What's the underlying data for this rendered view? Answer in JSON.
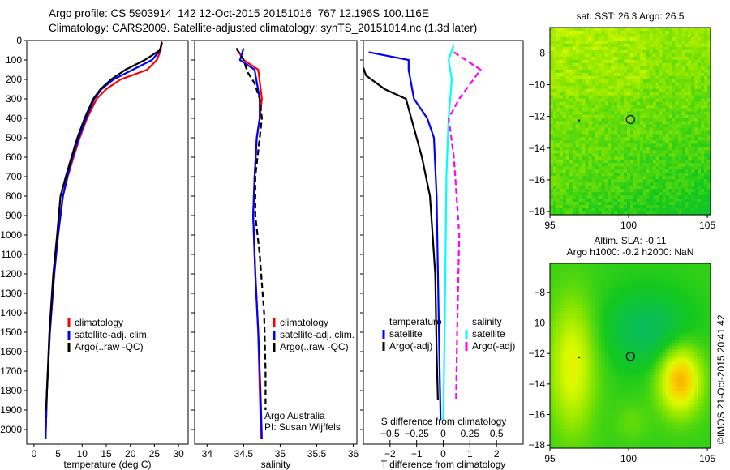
{
  "title_line1": "Argo profile: CS 5903914_142 12-Oct-2015 20151016_767 12.196S 100.116E",
  "title_line2": "Climatology: CARS2009. Satellite-adjusted climatology: synTS_20151014.nc (1.3d later)",
  "credit": "©IMOS 21-Oct-2015 20:41:42",
  "colors": {
    "climatology": "#ff0000",
    "satellite": "#0000ff",
    "argo": "#000000",
    "sal_satellite": "#00ffff",
    "sal_argo": "#ff00ff"
  },
  "chart_data": [
    {
      "type": "line",
      "id": "temp",
      "xlabel": "temperature (deg C)",
      "ylabel": "",
      "xlim": [
        -1.5,
        32
      ],
      "ylim": [
        0,
        2075
      ],
      "y_reversed": true,
      "xticks": [
        0,
        5,
        10,
        15,
        20,
        25,
        30
      ],
      "yticks": [
        0,
        100,
        200,
        300,
        400,
        500,
        600,
        700,
        800,
        900,
        1000,
        1100,
        1200,
        1300,
        1400,
        1500,
        1600,
        1700,
        1800,
        1900,
        2000
      ],
      "legend": [
        "climatology",
        "satellite-adj. clim.",
        "Argo(..raw -QC)"
      ],
      "series": [
        {
          "name": "climatology",
          "color": "#ff0000",
          "dash": false,
          "x": [
            26.5,
            26.3,
            25.5,
            23.5,
            18,
            15,
            13,
            11,
            9.5,
            8.2,
            7,
            6,
            5,
            4.2,
            3.3,
            2.7,
            2.4
          ],
          "y": [
            0,
            50,
            100,
            150,
            200,
            250,
            300,
            400,
            500,
            600,
            700,
            800,
            1000,
            1200,
            1500,
            1800,
            2050
          ]
        },
        {
          "name": "satellite-adj. clim.",
          "color": "#0000ff",
          "dash": false,
          "x": [
            26.5,
            26.2,
            24.5,
            20.5,
            16.5,
            14,
            12.5,
            10.8,
            9.3,
            8,
            6.9,
            6,
            5,
            4.2,
            3.3,
            2.7,
            2.4
          ],
          "y": [
            10,
            50,
            100,
            150,
            200,
            250,
            300,
            400,
            500,
            600,
            700,
            800,
            1000,
            1200,
            1500,
            1800,
            2050
          ]
        },
        {
          "name": "Argo(..raw -QC)",
          "color": "#000000",
          "dash": false,
          "x": [
            26.6,
            26.1,
            23,
            19,
            16,
            13.8,
            12.3,
            10.5,
            9,
            7.8,
            6.6,
            5.5,
            4.8,
            4,
            3.2,
            2.7,
            2.5
          ],
          "y": [
            10,
            50,
            100,
            150,
            200,
            250,
            300,
            400,
            500,
            600,
            700,
            800,
            1000,
            1200,
            1500,
            1800,
            1900
          ]
        }
      ]
    },
    {
      "type": "line",
      "id": "sal",
      "xlabel": "salinity",
      "xlim": [
        33.83,
        36.05
      ],
      "ylim": [
        0,
        2075
      ],
      "y_reversed": true,
      "xticks": [
        34,
        34.5,
        35,
        35.5,
        36
      ],
      "xticklabels": [
        "34",
        "34.5",
        "35",
        "35.5",
        "36"
      ],
      "legend": [
        "climatology",
        "satellite-adj. clim.",
        "Argo(..raw -QC)"
      ],
      "annotation": [
        "Argo Australia",
        "PI: Susan Wijffels"
      ],
      "series": [
        {
          "name": "climatology",
          "color": "#ff0000",
          "dash": false,
          "x": [
            34.4,
            34.5,
            34.7,
            34.75,
            34.72,
            34.68,
            34.65,
            34.63,
            34.66,
            34.7,
            34.72,
            34.74
          ],
          "y": [
            40,
            100,
            150,
            300,
            400,
            500,
            700,
            900,
            1200,
            1500,
            1800,
            2050
          ]
        },
        {
          "name": "satellite-adj. clim.",
          "color": "#0000ff",
          "dash": false,
          "x": [
            34.5,
            34.45,
            34.65,
            34.72,
            34.72,
            34.68,
            34.65,
            34.63,
            34.66,
            34.7,
            34.73,
            34.75
          ],
          "y": [
            40,
            100,
            150,
            300,
            400,
            500,
            700,
            900,
            1200,
            1500,
            1800,
            2050
          ]
        },
        {
          "name": "Argo(..raw -QC)",
          "color": "#000000",
          "dash": true,
          "x": [
            34.4,
            34.5,
            34.55,
            34.65,
            34.72,
            34.75,
            34.72,
            34.66,
            34.66,
            34.72,
            34.78,
            34.8,
            34.8
          ],
          "y": [
            40,
            100,
            160,
            220,
            300,
            400,
            500,
            700,
            900,
            1100,
            1400,
            1700,
            1900
          ]
        }
      ]
    },
    {
      "type": "line",
      "id": "diff",
      "xlabel": "T difference from climatology",
      "x2label": "S difference from climatology",
      "xlim": [
        -3,
        3
      ],
      "ylim": [
        0,
        2075
      ],
      "y_reversed": true,
      "xticks": [
        -2,
        -1,
        0,
        1,
        2
      ],
      "x2ticks": [
        -0.5,
        -0.25,
        0,
        0.25,
        0.5
      ],
      "x2ticklabels": [
        "-0.5",
        "-0.25",
        "0",
        "0.25",
        "0.5"
      ],
      "legend_t": {
        "title": "temperature",
        "items": [
          "satellite",
          "Argo(-adj)"
        ]
      },
      "legend_s": {
        "title": "salinity",
        "items": [
          "satellite",
          "Argo(-adj)"
        ]
      },
      "series": [
        {
          "name": "T satellite",
          "color": "#0000ff",
          "dash": false,
          "unit": "T",
          "x": [
            -2.8,
            -1.3,
            -1.3,
            -1.1,
            -0.6,
            -0.35,
            -0.25,
            -0.2,
            -0.15,
            -0.1
          ],
          "y": [
            60,
            100,
            150,
            300,
            400,
            500,
            800,
            1200,
            1600,
            1950
          ]
        },
        {
          "name": "T Argo(-adj)",
          "color": "#000000",
          "dash": false,
          "unit": "T",
          "x": [
            -3,
            -2.9,
            -2.2,
            -1.4,
            -1.2,
            -0.8,
            -0.5,
            -0.3,
            -0.25,
            -0.2
          ],
          "y": [
            140,
            180,
            250,
            300,
            400,
            600,
            800,
            1200,
            1600,
            1850
          ]
        },
        {
          "name": "S satellite",
          "color": "#00ffff",
          "dash": false,
          "unit": "S",
          "x": [
            0.1,
            0.05,
            0.08,
            0.05,
            0.03,
            0.02,
            0.01,
            0
          ],
          "y": [
            20,
            100,
            200,
            400,
            700,
            1200,
            1600,
            1950
          ]
        },
        {
          "name": "S Argo(-adj)",
          "color": "#ff00ff",
          "dash": true,
          "unit": "S",
          "x": [
            0.1,
            0.35,
            0.15,
            0.05,
            0.1,
            0.15,
            0.13,
            0.12
          ],
          "y": [
            60,
            150,
            300,
            400,
            600,
            1000,
            1500,
            1850
          ]
        }
      ]
    },
    {
      "type": "heatmap",
      "id": "sst",
      "title": "sat. SST: 26.3 Argo: 26.5",
      "xlim": [
        95,
        105.2
      ],
      "ylim": [
        -18.2,
        -6.4
      ],
      "xticks": [
        95,
        100,
        105
      ],
      "yticks": [
        -8,
        -10,
        -12,
        -14,
        -16,
        -18
      ],
      "marker": [
        100.116,
        -12.196
      ]
    },
    {
      "type": "heatmap",
      "id": "sla",
      "title": [
        "Altim. SLA: -0.11",
        "Argo h1000: -0.2 h2000: NaN"
      ],
      "xlim": [
        95,
        105.2
      ],
      "ylim": [
        -18.2,
        -6.1
      ],
      "xticks": [
        95,
        100,
        105
      ],
      "yticks": [
        -8,
        -10,
        -12,
        -14,
        -16,
        -18
      ],
      "marker": [
        100.116,
        -12.196
      ]
    }
  ]
}
